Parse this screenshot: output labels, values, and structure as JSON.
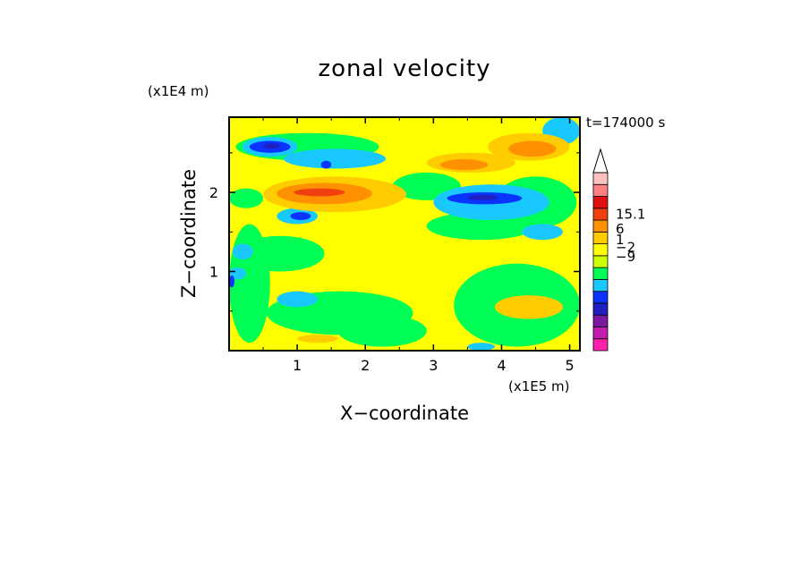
{
  "chart_data": {
    "type": "heatmap",
    "title": "zonal velocity",
    "xlabel": "X−coordinate",
    "ylabel": "Z−coordinate",
    "x_unit": "(x1E5 m)",
    "y_unit": "(x1E4 m)",
    "time_label": "t=174000 s",
    "xlim": [
      0,
      5.15
    ],
    "ylim": [
      0,
      2.95
    ],
    "x_ticks": [
      {
        "value": 1,
        "label": "1"
      },
      {
        "value": 2,
        "label": "2"
      },
      {
        "value": 3,
        "label": "3"
      },
      {
        "value": 4,
        "label": "4"
      },
      {
        "value": 5,
        "label": "5"
      }
    ],
    "y_ticks": [
      {
        "value": 1,
        "label": "1"
      },
      {
        "value": 2,
        "label": "2"
      }
    ],
    "colorbar": {
      "levels": [
        {
          "color": "#ff22aa"
        },
        {
          "color": "#c31cae"
        },
        {
          "color": "#7a1aa0"
        },
        {
          "color": "#2020c0"
        },
        {
          "color": "#0b33ff"
        },
        {
          "color": "#18c8ff"
        },
        {
          "color": "#00ff55"
        },
        {
          "color": "#ccff00"
        },
        {
          "color": "#ffff00"
        },
        {
          "color": "#ffcc00"
        },
        {
          "color": "#ff9000"
        },
        {
          "color": "#f04010"
        },
        {
          "color": "#e01010"
        },
        {
          "color": "#ff8080"
        },
        {
          "color": "#ffc0c0"
        }
      ],
      "labels": [
        {
          "text": "15.1",
          "value": 15.1
        },
        {
          "text": "6",
          "value": 6
        },
        {
          "text": "1",
          "value": 1
        },
        {
          "text": "−2",
          "value": -2
        },
        {
          "text": "−9",
          "value": -9
        }
      ]
    },
    "field_regions": [
      {
        "color": "#ffff00",
        "x": [
          0.0,
          5.15
        ],
        "z": [
          0.0,
          2.95
        ]
      },
      {
        "color": "#00ff55",
        "x": [
          0.0,
          0.6
        ],
        "z": [
          0.1,
          1.6
        ]
      },
      {
        "color": "#00ff55",
        "x": [
          0.55,
          2.7
        ],
        "z": [
          0.2,
          0.75
        ]
      },
      {
        "color": "#00ff55",
        "x": [
          1.6,
          2.9
        ],
        "z": [
          0.05,
          0.45
        ]
      },
      {
        "color": "#00ff55",
        "x": [
          3.3,
          5.15
        ],
        "z": [
          0.05,
          1.1
        ]
      },
      {
        "color": "#00ff55",
        "x": [
          2.9,
          4.5
        ],
        "z": [
          1.4,
          1.75
        ]
      },
      {
        "color": "#00ff55",
        "x": [
          0.1,
          2.2
        ],
        "z": [
          2.4,
          2.75
        ]
      },
      {
        "color": "#00ff55",
        "x": [
          3.9,
          5.1
        ],
        "z": [
          1.55,
          2.2
        ]
      },
      {
        "color": "#00ff55",
        "x": [
          0.1,
          1.4
        ],
        "z": [
          1.0,
          1.45
        ]
      },
      {
        "color": "#00ff55",
        "x": [
          2.4,
          3.4
        ],
        "z": [
          1.9,
          2.25
        ]
      },
      {
        "color": "#00ff55",
        "x": [
          0.0,
          0.5
        ],
        "z": [
          1.8,
          2.05
        ]
      },
      {
        "color": "#18c8ff",
        "x": [
          0.2,
          1.0
        ],
        "z": [
          2.45,
          2.7
        ]
      },
      {
        "color": "#18c8ff",
        "x": [
          0.8,
          2.3
        ],
        "z": [
          2.3,
          2.55
        ]
      },
      {
        "color": "#18c8ff",
        "x": [
          3.0,
          4.7
        ],
        "z": [
          1.65,
          2.1
        ]
      },
      {
        "color": "#18c8ff",
        "x": [
          0.7,
          1.3
        ],
        "z": [
          1.6,
          1.8
        ]
      },
      {
        "color": "#18c8ff",
        "x": [
          0.7,
          1.3
        ],
        "z": [
          0.55,
          0.75
        ]
      },
      {
        "color": "#18c8ff",
        "x": [
          0.05,
          0.35
        ],
        "z": [
          1.15,
          1.35
        ]
      },
      {
        "color": "#18c8ff",
        "x": [
          0.0,
          0.25
        ],
        "z": [
          0.9,
          1.05
        ]
      },
      {
        "color": "#18c8ff",
        "x": [
          4.6,
          5.15
        ],
        "z": [
          2.6,
          2.95
        ]
      },
      {
        "color": "#18c8ff",
        "x": [
          4.3,
          4.9
        ],
        "z": [
          1.4,
          1.6
        ]
      },
      {
        "color": "#18c8ff",
        "x": [
          3.5,
          3.9
        ],
        "z": [
          0.0,
          0.1
        ]
      },
      {
        "color": "#0b33ff",
        "x": [
          0.3,
          0.9
        ],
        "z": [
          2.5,
          2.65
        ]
      },
      {
        "color": "#0b33ff",
        "x": [
          3.2,
          4.3
        ],
        "z": [
          1.85,
          2.0
        ]
      },
      {
        "color": "#0b33ff",
        "x": [
          0.9,
          1.2
        ],
        "z": [
          1.65,
          1.75
        ]
      },
      {
        "color": "#0b33ff",
        "x": [
          1.35,
          1.5
        ],
        "z": [
          2.3,
          2.4
        ]
      },
      {
        "color": "#0b33ff",
        "x": [
          0.0,
          0.08
        ],
        "z": [
          0.8,
          0.95
        ]
      },
      {
        "color": "#2020c0",
        "x": [
          0.5,
          0.75
        ],
        "z": [
          2.55,
          2.62
        ]
      },
      {
        "color": "#2020c0",
        "x": [
          3.5,
          3.95
        ],
        "z": [
          1.9,
          1.97
        ]
      },
      {
        "color": "#ffcc00",
        "x": [
          0.5,
          2.6
        ],
        "z": [
          1.75,
          2.2
        ]
      },
      {
        "color": "#ffcc00",
        "x": [
          2.9,
          4.2
        ],
        "z": [
          2.25,
          2.5
        ]
      },
      {
        "color": "#ffcc00",
        "x": [
          3.8,
          5.0
        ],
        "z": [
          2.4,
          2.75
        ]
      },
      {
        "color": "#ffcc00",
        "x": [
          3.9,
          4.9
        ],
        "z": [
          0.4,
          0.7
        ]
      },
      {
        "color": "#ffcc00",
        "x": [
          1.0,
          1.6
        ],
        "z": [
          0.1,
          0.2
        ]
      },
      {
        "color": "#ff9000",
        "x": [
          0.7,
          2.1
        ],
        "z": [
          1.85,
          2.12
        ]
      },
      {
        "color": "#ff9000",
        "x": [
          4.1,
          4.8
        ],
        "z": [
          2.45,
          2.65
        ]
      },
      {
        "color": "#ff9000",
        "x": [
          3.1,
          3.8
        ],
        "z": [
          2.28,
          2.42
        ]
      },
      {
        "color": "#f04010",
        "x": [
          0.95,
          1.7
        ],
        "z": [
          1.95,
          2.05
        ]
      }
    ]
  }
}
